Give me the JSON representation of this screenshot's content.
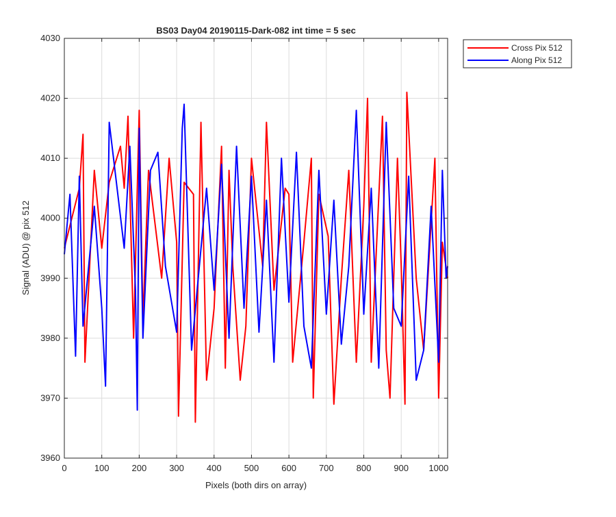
{
  "chart_data": {
    "type": "line",
    "title": "BS03 Day04 20190115-Dark-082 int time = 5 sec",
    "xlabel": "Pixels (both dirs on array)",
    "ylabel": "Signal (ADU) @ pix 512",
    "xlim": [
      0,
      1024
    ],
    "ylim": [
      3960,
      4030
    ],
    "xticks": [
      0,
      100,
      200,
      300,
      400,
      500,
      600,
      700,
      800,
      900,
      1000
    ],
    "yticks": [
      3960,
      3970,
      3980,
      3990,
      4000,
      4010,
      4020,
      4030
    ],
    "grid": true,
    "legend_position": "outside top-right",
    "series": [
      {
        "name": "Cross Pix 512",
        "color": "#ff0000",
        "x": [
          0,
          20,
          40,
          50,
          55,
          80,
          100,
          120,
          150,
          160,
          170,
          185,
          200,
          210,
          225,
          260,
          280,
          300,
          305,
          320,
          345,
          350,
          365,
          380,
          400,
          420,
          430,
          440,
          450,
          470,
          485,
          500,
          530,
          540,
          560,
          590,
          600,
          610,
          640,
          660,
          665,
          680,
          705,
          720,
          740,
          760,
          780,
          800,
          810,
          820,
          850,
          860,
          870,
          890,
          900,
          910,
          915,
          940,
          960,
          990,
          1000,
          1010,
          1024
        ],
        "y": [
          3995,
          4000,
          4005,
          4014,
          3976,
          4008,
          3995,
          4006,
          4012,
          4005,
          4017,
          3980,
          4018,
          3983,
          4008,
          3990,
          4010,
          3996,
          3967,
          4006,
          4004,
          3966,
          4016,
          3973,
          3985,
          4012,
          3975,
          4008,
          3992,
          3973,
          3982,
          4010,
          3992,
          4016,
          3988,
          4005,
          4004,
          3976,
          3996,
          4010,
          3970,
          4004,
          3997,
          3969,
          3990,
          4008,
          3976,
          4002,
          4020,
          3976,
          4017,
          3978,
          3970,
          4010,
          3992,
          3969,
          4021,
          3990,
          3978,
          4010,
          3970,
          3996,
          3990
        ]
      },
      {
        "name": "Along Pix 512",
        "color": "#0000ff",
        "x": [
          0,
          15,
          30,
          40,
          50,
          80,
          100,
          110,
          120,
          160,
          175,
          190,
          195,
          200,
          210,
          230,
          250,
          270,
          300,
          315,
          320,
          340,
          380,
          400,
          420,
          440,
          460,
          480,
          500,
          520,
          540,
          560,
          580,
          600,
          620,
          640,
          660,
          680,
          700,
          720,
          740,
          760,
          780,
          800,
          820,
          840,
          860,
          880,
          900,
          920,
          940,
          960,
          980,
          1000,
          1010,
          1020,
          1024
        ],
        "y": [
          3994,
          4004,
          3977,
          4007,
          3982,
          4002,
          3985,
          3972,
          4016,
          3995,
          4012,
          3988,
          3968,
          4015,
          3980,
          4008,
          4011,
          3992,
          3981,
          4015,
          4019,
          3978,
          4005,
          3988,
          4009,
          3980,
          4012,
          3985,
          4007,
          3981,
          4003,
          3976,
          4010,
          3986,
          4011,
          3982,
          3975,
          4008,
          3984,
          4003,
          3979,
          3992,
          4018,
          3984,
          4005,
          3975,
          4016,
          3985,
          3982,
          4007,
          3973,
          3978,
          4002,
          3976,
          4008,
          3990,
          3992
        ]
      }
    ]
  }
}
